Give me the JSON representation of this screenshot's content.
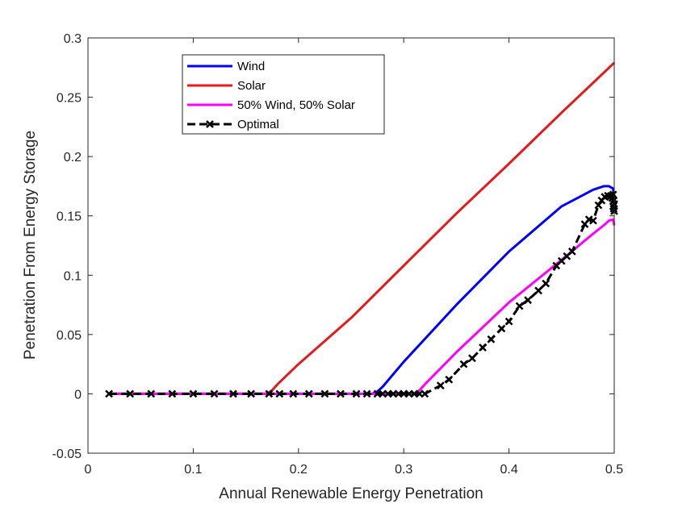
{
  "chart_data": {
    "type": "line",
    "xlabel": "Annual Renewable Energy Penetration",
    "ylabel": "Penetration From Energy Storage",
    "xlim": [
      0,
      0.5
    ],
    "ylim": [
      -0.05,
      0.3
    ],
    "xticks": [
      "0",
      "0.1",
      "0.2",
      "0.3",
      "0.4",
      "0.5"
    ],
    "yticks": [
      "-0.05",
      "0",
      "0.05",
      "0.1",
      "0.15",
      "0.2",
      "0.25",
      "0.3"
    ],
    "xtick_values": [
      0,
      0.1,
      0.2,
      0.3,
      0.4,
      0.5
    ],
    "ytick_values": [
      -0.05,
      0,
      0.05,
      0.1,
      0.15,
      0.2,
      0.25,
      0.3
    ],
    "grid": false,
    "legend_position": "top-left",
    "series": [
      {
        "name": "Wind",
        "color": "#0000FF",
        "marker": "none",
        "dash": "solid",
        "x": [
          0.02,
          0.27,
          0.275,
          0.28,
          0.3,
          0.35,
          0.4,
          0.45,
          0.48,
          0.49,
          0.495,
          0.499,
          0.5
        ],
        "y": [
          0,
          0,
          0.002,
          0.006,
          0.027,
          0.075,
          0.12,
          0.158,
          0.172,
          0.175,
          0.175,
          0.173,
          0.16
        ]
      },
      {
        "name": "Solar",
        "color": "#E41A1C",
        "marker": "none",
        "dash": "solid",
        "x": [
          0.02,
          0.17,
          0.175,
          0.18,
          0.2,
          0.25,
          0.3,
          0.35,
          0.4,
          0.45,
          0.5
        ],
        "y": [
          0,
          0,
          0.003,
          0.008,
          0.025,
          0.064,
          0.108,
          0.152,
          0.194,
          0.237,
          0.279
        ]
      },
      {
        "name": "50% Wind, 50% Solar",
        "color": "#FF00FF",
        "marker": "none",
        "dash": "solid",
        "x": [
          0.02,
          0.31,
          0.315,
          0.32,
          0.35,
          0.4,
          0.45,
          0.48,
          0.49,
          0.495,
          0.499,
          0.5
        ],
        "y": [
          0,
          0,
          0.003,
          0.008,
          0.035,
          0.077,
          0.113,
          0.135,
          0.142,
          0.146,
          0.147,
          0.142
        ]
      },
      {
        "name": "Optimal",
        "color": "#000000",
        "marker": "x",
        "dash": "dashed",
        "x": [
          0.02,
          0.04,
          0.06,
          0.08,
          0.1,
          0.12,
          0.138,
          0.155,
          0.172,
          0.182,
          0.195,
          0.21,
          0.225,
          0.24,
          0.255,
          0.265,
          0.275,
          0.28,
          0.285,
          0.29,
          0.295,
          0.3,
          0.305,
          0.31,
          0.315,
          0.32,
          0.335,
          0.343,
          0.357,
          0.365,
          0.375,
          0.383,
          0.393,
          0.4,
          0.41,
          0.418,
          0.428,
          0.435,
          0.445,
          0.45,
          0.455,
          0.46,
          0.472,
          0.476,
          0.48,
          0.485,
          0.488,
          0.491,
          0.494,
          0.496,
          0.497,
          0.498,
          0.499,
          0.4995,
          0.5,
          0.5,
          0.4995,
          0.499
        ],
        "y": [
          0,
          0,
          0,
          0,
          0,
          0,
          0,
          0,
          0,
          0,
          0,
          0,
          0,
          0,
          0,
          0,
          0,
          0,
          0,
          0,
          0,
          0,
          0,
          0,
          0,
          0,
          0.007,
          0.012,
          0.025,
          0.03,
          0.039,
          0.046,
          0.055,
          0.061,
          0.074,
          0.079,
          0.087,
          0.093,
          0.108,
          0.112,
          0.116,
          0.12,
          0.143,
          0.147,
          0.146,
          0.159,
          0.163,
          0.166,
          0.167,
          0.166,
          0.167,
          0.165,
          0.168,
          0.163,
          0.16,
          0.154,
          0.156,
          0.158
        ]
      }
    ]
  }
}
